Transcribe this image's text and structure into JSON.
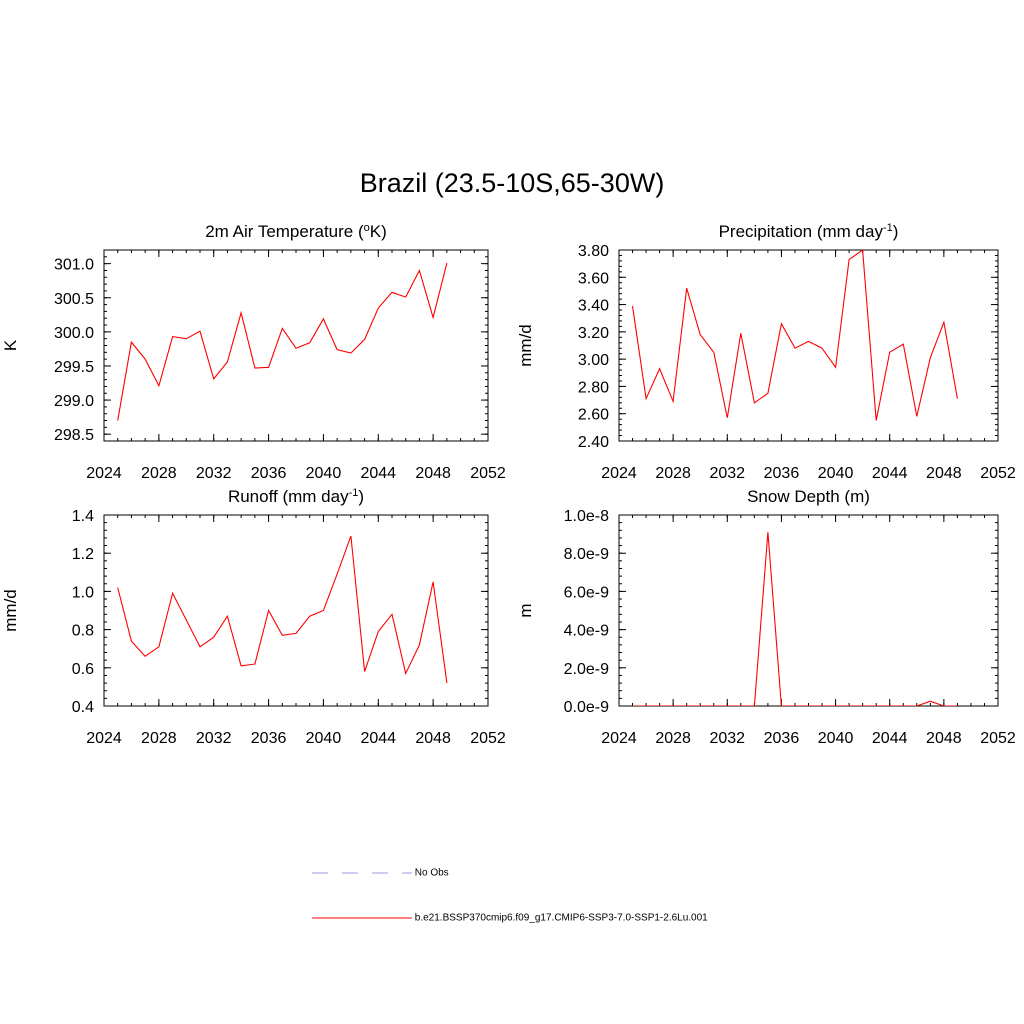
{
  "title": "Brazil (23.5-10S,65-30W)",
  "legend": {
    "entries": [
      {
        "label": "No Obs",
        "color": "#9999dd",
        "style": "dashed"
      },
      {
        "label": "b.e21.BSSP370cmip6.f09_g17.CMIP6-SSP3-7.0-SSP1-2.6Lu.001",
        "color": "#ff0000",
        "style": "solid"
      }
    ]
  },
  "chart_data": [
    {
      "type": "line",
      "title": "2m Air Temperature (",
      "title_sup": "o",
      "title_tail": "K)",
      "ylabel": "K",
      "xlim": [
        2024,
        2052
      ],
      "ylim": [
        298.4,
        301.2
      ],
      "xticks": [
        2024,
        2028,
        2032,
        2036,
        2040,
        2044,
        2048,
        2052
      ],
      "yticks": [
        298.5,
        299.0,
        299.5,
        300.0,
        300.5,
        301.0
      ],
      "ytick_labels": [
        "298.5",
        "299.0",
        "299.5",
        "300.0",
        "300.5",
        "301.0"
      ],
      "x": [
        2025,
        2026,
        2027,
        2028,
        2029,
        2030,
        2031,
        2032,
        2033,
        2034,
        2035,
        2036,
        2037,
        2038,
        2039,
        2040,
        2041,
        2042,
        2043,
        2044,
        2045,
        2046,
        2047,
        2048,
        2049
      ],
      "series": [
        {
          "values": [
            298.7,
            299.85,
            299.6,
            299.21,
            299.93,
            299.9,
            300.01,
            299.31,
            299.56,
            300.28,
            299.47,
            299.48,
            300.05,
            299.76,
            299.84,
            300.19,
            299.74,
            299.69,
            299.89,
            300.35,
            300.58,
            300.51,
            300.9,
            300.21,
            301.01
          ],
          "color": "#ff0000"
        }
      ]
    },
    {
      "type": "line",
      "title": "Precipitation (mm day",
      "title_sup": "-1",
      "title_tail": ")",
      "ylabel": "mm/d",
      "xlim": [
        2024,
        2052
      ],
      "ylim": [
        2.4,
        3.8
      ],
      "xticks": [
        2024,
        2028,
        2032,
        2036,
        2040,
        2044,
        2048,
        2052
      ],
      "yticks": [
        2.4,
        2.6,
        2.8,
        3.0,
        3.2,
        3.4,
        3.6,
        3.8
      ],
      "ytick_labels": [
        "2.40",
        "2.60",
        "2.80",
        "3.00",
        "3.20",
        "3.40",
        "3.60",
        "3.80"
      ],
      "x": [
        2025,
        2026,
        2027,
        2028,
        2029,
        2030,
        2031,
        2032,
        2033,
        2034,
        2035,
        2036,
        2037,
        2038,
        2039,
        2040,
        2041,
        2042,
        2043,
        2044,
        2045,
        2046,
        2047,
        2048,
        2049
      ],
      "series": [
        {
          "values": [
            3.39,
            2.71,
            2.93,
            2.69,
            3.52,
            3.18,
            3.05,
            2.57,
            3.19,
            2.68,
            2.75,
            3.26,
            3.08,
            3.13,
            3.08,
            2.94,
            3.73,
            3.8,
            2.55,
            3.05,
            3.11,
            2.58,
            3.01,
            3.27,
            2.71
          ],
          "color": "#ff0000"
        }
      ]
    },
    {
      "type": "line",
      "title": "Runoff (mm day",
      "title_sup": "-1",
      "title_tail": ")",
      "ylabel": "mm/d",
      "xlim": [
        2024,
        2052
      ],
      "ylim": [
        0.4,
        1.4
      ],
      "xticks": [
        2024,
        2028,
        2032,
        2036,
        2040,
        2044,
        2048,
        2052
      ],
      "yticks": [
        0.4,
        0.6,
        0.8,
        1.0,
        1.2,
        1.4
      ],
      "ytick_labels": [
        "0.4",
        "0.6",
        "0.8",
        "1.0",
        "1.2",
        "1.4"
      ],
      "x": [
        2025,
        2026,
        2027,
        2028,
        2029,
        2030,
        2031,
        2032,
        2033,
        2034,
        2035,
        2036,
        2037,
        2038,
        2039,
        2040,
        2041,
        2042,
        2043,
        2044,
        2045,
        2046,
        2047,
        2048,
        2049
      ],
      "series": [
        {
          "values": [
            1.02,
            0.74,
            0.66,
            0.71,
            0.99,
            0.85,
            0.71,
            0.76,
            0.87,
            0.61,
            0.62,
            0.9,
            0.77,
            0.78,
            0.87,
            0.9,
            1.09,
            1.29,
            0.58,
            0.79,
            0.88,
            0.57,
            0.72,
            1.05,
            0.52
          ],
          "color": "#ff0000"
        }
      ]
    },
    {
      "type": "line",
      "title": "Snow Depth (m)",
      "title_sup": "",
      "title_tail": "",
      "ylabel": "m",
      "xlim": [
        2024,
        2052
      ],
      "ylim": [
        0,
        1e-08
      ],
      "xticks": [
        2024,
        2028,
        2032,
        2036,
        2040,
        2044,
        2048,
        2052
      ],
      "yticks": [
        0,
        2e-09,
        4e-09,
        6e-09,
        8e-09,
        1e-08
      ],
      "ytick_labels": [
        "0.0e-9",
        "2.0e-9",
        "4.0e-9",
        "6.0e-9",
        "8.0e-9",
        "1.0e-8"
      ],
      "x": [
        2025,
        2026,
        2027,
        2028,
        2029,
        2030,
        2031,
        2032,
        2033,
        2034,
        2035,
        2036,
        2037,
        2038,
        2039,
        2040,
        2041,
        2042,
        2043,
        2044,
        2045,
        2046,
        2047,
        2048,
        2049
      ],
      "series": [
        {
          "values": [
            0,
            0,
            0,
            0,
            0,
            0,
            0,
            0,
            0,
            0,
            9.1e-09,
            0,
            0,
            0,
            0,
            0,
            0,
            0,
            0,
            0,
            0,
            0,
            2.5e-10,
            0,
            0
          ],
          "color": "#ff0000"
        }
      ]
    }
  ]
}
